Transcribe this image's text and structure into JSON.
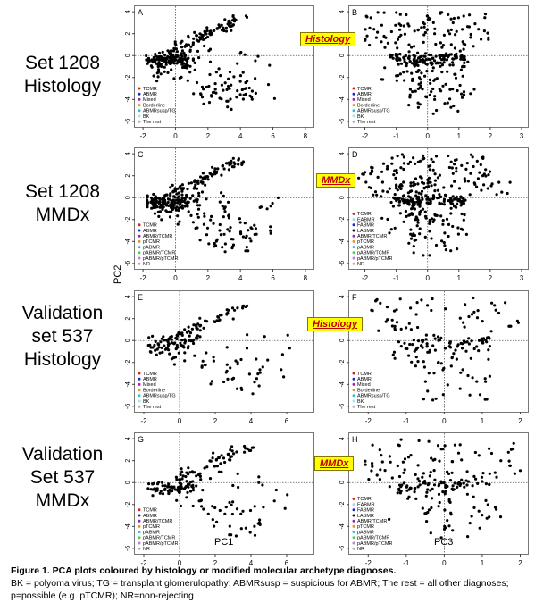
{
  "row_labels": [
    [
      "Set 1208",
      "Histology"
    ],
    [
      "Set 1208",
      "MMDx"
    ],
    [
      "Validation",
      "set 537",
      "Histology"
    ],
    [
      "Validation",
      "Set 537",
      "MMDx"
    ]
  ],
  "badges": {
    "histology": "Histology",
    "mmdx": "MMDx"
  },
  "axis_labels": {
    "y": "PC2",
    "x_left": "PC1",
    "x_right": "PC3"
  },
  "caption": {
    "title": "Figure 1. PCA plots coloured by histology or modified molecular archetype diagnoses.",
    "body": "BK = polyoma virus; TG = transplant glomerulopathy; ABMRsusp = suspicious for ABMR; The rest = all other diagnoses; p=possible (e.g. pTCMR); NR=non-rejecting"
  },
  "legends": {
    "histology": [
      "TCMR",
      "ABMR",
      "Mixed",
      "Borderline",
      "ABMRsusp/TG",
      "BK",
      "The rest"
    ],
    "mmdx_left": [
      "TCMR",
      "ABMR",
      "ABMR/TCMR",
      "pTCMR",
      "pABMR",
      "pABMR/TCMR",
      "pABMR/pTCMR",
      "NR"
    ],
    "mmdx_right": [
      "TCMR",
      "EABMR",
      "FABMR",
      "LABMR",
      "ABMR/TCMR",
      "pTCMR",
      "pABMR",
      "pABMR/TCMR",
      "pABMR/pTCMR",
      "NR"
    ]
  },
  "colors": {
    "TCMR": "#d42020",
    "ABMR": "#2323c8",
    "Mixed": "#9b27b0",
    "Borderline": "#e8902a",
    "ABMRsusp/TG": "#33c0d0",
    "BK": "#a7e4f0",
    "The rest": "#b0b0b0",
    "EABMR": "#9fd8f0",
    "FABMR": "#2323c8",
    "LABMR": "#111111",
    "ABMR/TCMR": "#9b27b0",
    "pTCMR": "#e8902a",
    "pABMR": "#33c0d0",
    "pABMR/TCMR": "#50d050",
    "pABMR/pTCMR": "#c080e0",
    "NR": "#b0b0b0"
  },
  "chart_data": [
    {
      "panel": "A",
      "type": "scatter",
      "xlabel": "",
      "ylabel": "",
      "xlim": [
        -2.5,
        8.5
      ],
      "ylim": [
        -6.5,
        4.5
      ],
      "xticks": [
        -2,
        0,
        2,
        4,
        6,
        8
      ],
      "yticks": [
        4,
        2,
        0,
        -2,
        -4,
        -6
      ]
    },
    {
      "panel": "B",
      "type": "scatter",
      "xlabel": "",
      "ylabel": "",
      "xlim": [
        -2.5,
        3.2
      ],
      "ylim": [
        -6.5,
        4.5
      ],
      "xticks": [
        -2,
        -1,
        0,
        1,
        2,
        3
      ],
      "yticks": [
        4,
        2,
        0,
        -2,
        -4,
        -6
      ]
    },
    {
      "panel": "C",
      "type": "scatter",
      "xlabel": "",
      "ylabel": "",
      "xlim": [
        -2.5,
        8.5
      ],
      "ylim": [
        -6.5,
        4.5
      ],
      "xticks": [
        -2,
        0,
        2,
        4,
        6,
        8
      ],
      "yticks": [
        4,
        2,
        0,
        -2,
        -4,
        -6
      ]
    },
    {
      "panel": "D",
      "type": "scatter",
      "xlabel": "",
      "ylabel": "",
      "xlim": [
        -2.5,
        3.2
      ],
      "ylim": [
        -6.5,
        4.5
      ],
      "xticks": [
        -2,
        -1,
        0,
        1,
        2,
        3
      ],
      "yticks": [
        4,
        2,
        0,
        -2,
        -4,
        -6
      ]
    },
    {
      "panel": "E",
      "type": "scatter",
      "xlabel": "",
      "ylabel": "",
      "xlim": [
        -2.5,
        7.5
      ],
      "ylim": [
        -6.5,
        4.5
      ],
      "xticks": [
        -2,
        0,
        2,
        4,
        6
      ],
      "yticks": [
        4,
        2,
        0,
        -2,
        -4,
        -6
      ]
    },
    {
      "panel": "F",
      "type": "scatter",
      "xlabel": "",
      "ylabel": "",
      "xlim": [
        -2.5,
        2.2
      ],
      "ylim": [
        -6.5,
        4.5
      ],
      "xticks": [
        -2,
        -1,
        0,
        1,
        2
      ],
      "yticks": [
        4,
        2,
        0,
        -2,
        -4,
        -6
      ]
    },
    {
      "panel": "G",
      "type": "scatter",
      "xlabel": "PC1",
      "ylabel": "",
      "xlim": [
        -2.5,
        7.5
      ],
      "ylim": [
        -6.5,
        4.5
      ],
      "xticks": [
        -2,
        0,
        2,
        4,
        6
      ],
      "yticks": [
        4,
        2,
        0,
        -2,
        -4,
        -6
      ]
    },
    {
      "panel": "H",
      "type": "scatter",
      "xlabel": "PC3",
      "ylabel": "",
      "xlim": [
        -2.5,
        2.2
      ],
      "ylim": [
        -6.5,
        4.5
      ],
      "xticks": [
        -2,
        -1,
        0,
        1,
        2
      ],
      "yticks": [
        4,
        2,
        0,
        -2,
        -4,
        -6
      ]
    }
  ]
}
